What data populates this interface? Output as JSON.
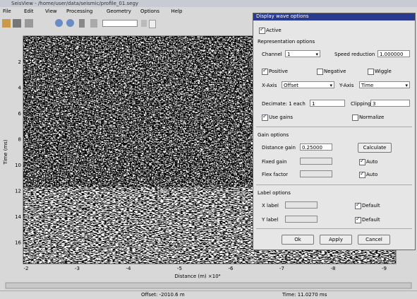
{
  "window": {
    "title": "SeisView - /home/user/data/seismic/profile_01.segy",
    "menu": [
      "File",
      "Edit",
      "View",
      "Processing",
      "Geometry",
      "Options",
      "Help"
    ],
    "status": {
      "offset": "Offset: -2010.6 m",
      "time": "Time: 11.0270 ms"
    }
  },
  "plot": {
    "x_ticks": [
      "-2",
      "-3",
      "-4",
      "-5",
      "-6",
      "-7",
      "-8",
      "-9"
    ],
    "y_ticks": [
      "2",
      "4",
      "6",
      "8",
      "10",
      "12",
      "14",
      "16"
    ],
    "x_label": "Distance (m) ×10⁴",
    "y_label": "Time (ms)"
  },
  "dialog": {
    "title": "Display wave options",
    "active": "Active",
    "representation": {
      "heading": "Representation options",
      "channel": "Channel",
      "channel_value": "1",
      "speed": "Speed reduction",
      "speed_value": "1.000000",
      "positive": "Positive",
      "negative": "Negative",
      "wiggle": "Wiggle",
      "x_axis": "X-Axis",
      "x_axis_value": "Offset",
      "y_axis": "Y-Axis",
      "y_axis_value": "Time",
      "decimate": "Decimate: 1 each",
      "decimate_value": "1",
      "clipping": "Clipping",
      "clipping_value": "3",
      "use_gains": "Use gains",
      "normalize": "Normalize"
    },
    "gain": {
      "heading": "Gain options",
      "distance": "Distance gain",
      "distance_value": "0.25000",
      "calculate": "Calculate",
      "fixed": "Fixed gain",
      "auto1": "Auto",
      "flex": "Flex factor",
      "auto2": "Auto"
    },
    "labels": {
      "heading": "Label options",
      "x": "X label",
      "default1": "Default",
      "y": "Y label",
      "default2": "Default"
    },
    "buttons": {
      "ok": "Ok",
      "apply": "Apply",
      "cancel": "Cancel"
    }
  }
}
